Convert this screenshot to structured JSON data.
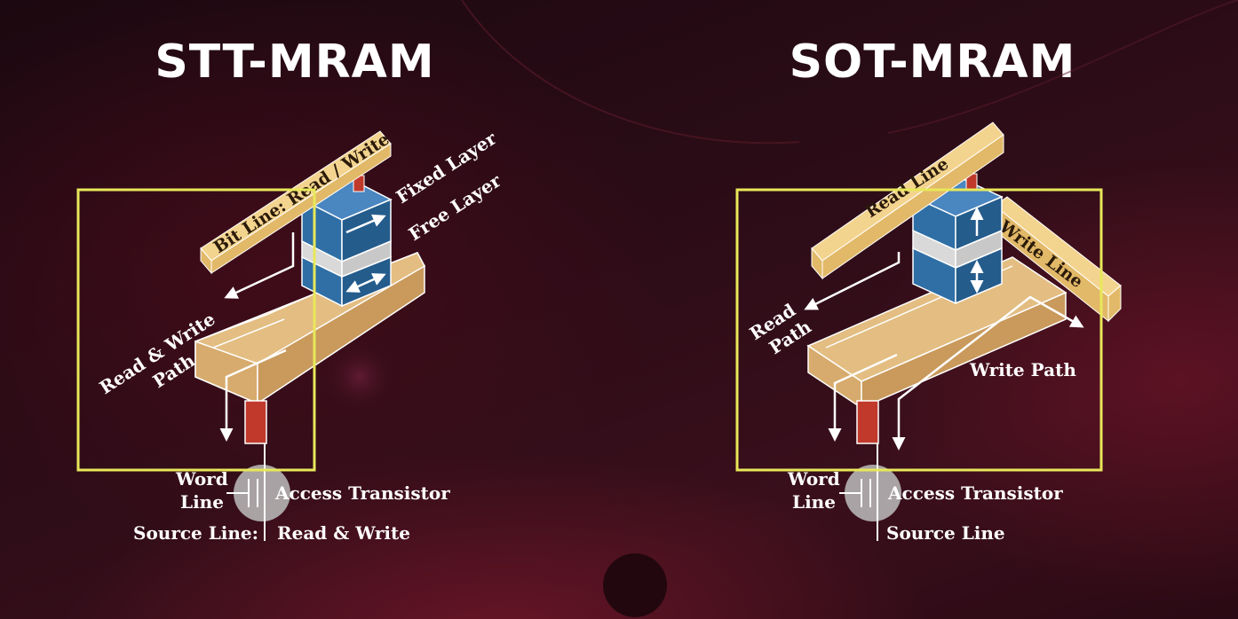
{
  "stt": {
    "title": "STT-MRAM",
    "bit_line": "Bit Line: Read / Write",
    "fixed_layer": "Fixed Layer",
    "free_layer": "Free Layer",
    "path_line1": "Read & Write",
    "path_line2": "Path",
    "word_line1": "Word",
    "word_line2": "Line",
    "access_transistor": "Access Transistor",
    "source_line": "Source Line:",
    "source_line_value": "Read & Write"
  },
  "sot": {
    "title": "SOT-MRAM",
    "read_line": "Read Line",
    "write_line": "Write Line",
    "read_path1": "Read",
    "read_path2": "Path",
    "write_path": "Write Path",
    "word_line1": "Word",
    "word_line2": "Line",
    "access_transistor": "Access Transistor",
    "source_line": "Source Line"
  },
  "colors": {
    "highlight_box": "#e8e85a",
    "bar_top": "#f3d48f",
    "bar_side": "#e2b968",
    "slab_top": "#e3bd82",
    "slab_side": "#c99a5c",
    "mtj_blue": "#2f6fa6",
    "mtj_grey": "#d9d9d9",
    "pillar_red": "#c0392b"
  }
}
